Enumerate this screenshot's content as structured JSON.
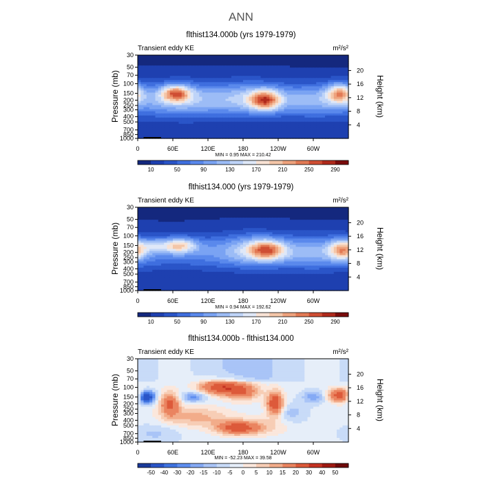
{
  "figure_title": "ANN",
  "colors": {
    "diff_scale": [
      "#1a3a9a",
      "#2a55c8",
      "#3f73e0",
      "#5e8ef0",
      "#85aaf5",
      "#a9c4f7",
      "#c8dbf8",
      "#e6eef9",
      "#fbe7dc",
      "#f7cdb5",
      "#f2ac8a",
      "#ea8460",
      "#dd5a3a",
      "#c43222",
      "#9f1a12",
      "#6e0a0a"
    ],
    "field_scale": [
      "#14287e",
      "#1e40b0",
      "#2a55c8",
      "#3f6fdf",
      "#5a89ec",
      "#7aa3f3",
      "#9cbcf6",
      "#bfd4f8",
      "#dfe8f8",
      "#f8e2d4",
      "#f4c6a8",
      "#eea27d",
      "#e27a55",
      "#cf4e33",
      "#b02a1c",
      "#7a0c0c"
    ]
  },
  "chart_data": [
    {
      "type": "heatmap",
      "title": "flthist134.000b (yrs 1979-1979)",
      "left_label": "Transient eddy KE",
      "units": "m²/s²",
      "ylabel": "Pressure (mb)",
      "y2label": "Height (km)",
      "x_tick_labels": [
        "0",
        "60E",
        "120E",
        "180",
        "120W",
        "60W"
      ],
      "x_ticks_deg": [
        0,
        60,
        120,
        180,
        240,
        300
      ],
      "xlim": [
        0,
        360
      ],
      "y_tick_labels": [
        "30",
        "50",
        "70",
        "100",
        "150",
        "200",
        "250",
        "300",
        "400",
        "500",
        "700",
        "850",
        "1000"
      ],
      "y_ticks_mb": [
        30,
        50,
        70,
        100,
        150,
        200,
        250,
        300,
        400,
        500,
        700,
        850,
        1000
      ],
      "ylim_mb": [
        30,
        1000
      ],
      "height_ticks_km": [
        "20",
        "16",
        "12",
        "8",
        "4"
      ],
      "stats": "MIN =    0.95   MAX =  210.42",
      "colorbar_labels": [
        "10",
        "50",
        "90",
        "130",
        "170",
        "210",
        "250",
        "290"
      ],
      "levels": [
        0,
        10,
        30,
        50,
        70,
        90,
        110,
        130,
        150,
        170,
        190,
        210,
        230,
        250,
        270,
        290
      ],
      "base": 55,
      "features": [
        {
          "lon": 65,
          "p": 150,
          "amp": 155,
          "wlon": 18,
          "wp": 0.25
        },
        {
          "lon": 218,
          "p": 200,
          "amp": 155,
          "wlon": 18,
          "wp": 0.3
        },
        {
          "lon": 190,
          "p": 180,
          "amp": 55,
          "wlon": 40,
          "wp": 0.5
        },
        {
          "lon": 345,
          "p": 150,
          "amp": 140,
          "wlon": 16,
          "wp": 0.3
        },
        {
          "lon": 80,
          "p": 200,
          "amp": 50,
          "wlon": 50,
          "wp": 0.55
        },
        {
          "lon": 300,
          "p": 200,
          "amp": 40,
          "wlon": 40,
          "wp": 0.5
        }
      ]
    },
    {
      "type": "heatmap",
      "title": "flthist134.000 (yrs 1979-1979)",
      "left_label": "Transient eddy KE",
      "units": "m²/s²",
      "ylabel": "Pressure (mb)",
      "y2label": "Height (km)",
      "x_tick_labels": [
        "0",
        "60E",
        "120E",
        "180",
        "120W",
        "60W"
      ],
      "x_ticks_deg": [
        0,
        60,
        120,
        180,
        240,
        300
      ],
      "xlim": [
        0,
        360
      ],
      "y_tick_labels": [
        "30",
        "50",
        "70",
        "100",
        "150",
        "200",
        "250",
        "300",
        "400",
        "500",
        "700",
        "850",
        "1000"
      ],
      "y_ticks_mb": [
        30,
        50,
        70,
        100,
        150,
        200,
        250,
        300,
        400,
        500,
        700,
        850,
        1000
      ],
      "ylim_mb": [
        30,
        1000
      ],
      "height_ticks_km": [
        "20",
        "16",
        "12",
        "8",
        "4"
      ],
      "stats": "MIN =    0.94   MAX =  192.62",
      "colorbar_labels": [
        "10",
        "50",
        "90",
        "130",
        "170",
        "210",
        "250",
        "290"
      ],
      "levels": [
        0,
        10,
        30,
        50,
        70,
        90,
        110,
        130,
        150,
        170,
        190,
        210,
        230,
        250,
        270,
        290
      ],
      "base": 55,
      "features": [
        {
          "lon": 70,
          "p": 150,
          "amp": 135,
          "wlon": 22,
          "wp": 0.22
        },
        {
          "lon": 220,
          "p": 180,
          "amp": 145,
          "wlon": 22,
          "wp": 0.3
        },
        {
          "lon": 190,
          "p": 180,
          "amp": 55,
          "wlon": 40,
          "wp": 0.5
        },
        {
          "lon": 350,
          "p": 180,
          "amp": 140,
          "wlon": 16,
          "wp": 0.3
        },
        {
          "lon": 25,
          "p": 150,
          "amp": 60,
          "wlon": 15,
          "wp": 0.2
        },
        {
          "lon": 300,
          "p": 200,
          "amp": 40,
          "wlon": 40,
          "wp": 0.5
        }
      ]
    },
    {
      "type": "heatmap",
      "title": "flthist134.000b - flthist134.000",
      "left_label": "Transient eddy KE",
      "units": "m²/s²",
      "ylabel": "Pressure (mb)",
      "y2label": "Height (km)",
      "x_tick_labels": [
        "0",
        "60E",
        "120E",
        "180",
        "120W",
        "60W"
      ],
      "x_ticks_deg": [
        0,
        60,
        120,
        180,
        240,
        300
      ],
      "xlim": [
        0,
        360
      ],
      "y_tick_labels": [
        "30",
        "50",
        "70",
        "100",
        "150",
        "200",
        "250",
        "300",
        "400",
        "500",
        "700",
        "850",
        "1000"
      ],
      "y_ticks_mb": [
        30,
        50,
        70,
        100,
        150,
        200,
        250,
        300,
        400,
        500,
        700,
        850,
        1000
      ],
      "ylim_mb": [
        30,
        1000
      ],
      "height_ticks_km": [
        "20",
        "16",
        "12",
        "8",
        "4"
      ],
      "stats": "MIN =  -52.23   MAX =   39.58",
      "colorbar_labels": [
        "-50",
        "-40",
        "-30",
        "-20",
        "-15",
        "-10",
        "-5",
        "0",
        "5",
        "10",
        "15",
        "20",
        "30",
        "40",
        "50"
      ],
      "levels": [
        -50,
        -40,
        -30,
        -20,
        -15,
        -10,
        -5,
        0,
        5,
        10,
        15,
        20,
        30,
        40,
        50
      ],
      "base": 2,
      "features": [
        {
          "lon": 15,
          "p": 150,
          "amp": -45,
          "wlon": 10,
          "wp": 0.18
        },
        {
          "lon": 55,
          "p": 200,
          "amp": 30,
          "wlon": 12,
          "wp": 0.35
        },
        {
          "lon": 140,
          "p": 100,
          "amp": 35,
          "wlon": 25,
          "wp": 0.22
        },
        {
          "lon": 180,
          "p": 120,
          "amp": 25,
          "wlon": 20,
          "wp": 0.25
        },
        {
          "lon": 95,
          "p": 150,
          "amp": -20,
          "wlon": 15,
          "wp": 0.15
        },
        {
          "lon": 235,
          "p": 200,
          "amp": 40,
          "wlon": 10,
          "wp": 0.35
        },
        {
          "lon": 170,
          "p": 550,
          "amp": 35,
          "wlon": 25,
          "wp": 0.2
        },
        {
          "lon": 345,
          "p": 140,
          "amp": 35,
          "wlon": 14,
          "wp": 0.2
        },
        {
          "lon": 300,
          "p": 150,
          "amp": -15,
          "wlon": 14,
          "wp": 0.2
        },
        {
          "lon": 100,
          "p": 350,
          "amp": 15,
          "wlon": 40,
          "wp": 0.3
        },
        {
          "lon": 260,
          "p": 300,
          "amp": -10,
          "wlon": 20,
          "wp": 0.3
        },
        {
          "lon": 30,
          "p": 700,
          "amp": -8,
          "wlon": 30,
          "wp": 0.3
        },
        {
          "lon": 220,
          "p": 500,
          "amp": 8,
          "wlon": 30,
          "wp": 0.3
        }
      ]
    }
  ]
}
